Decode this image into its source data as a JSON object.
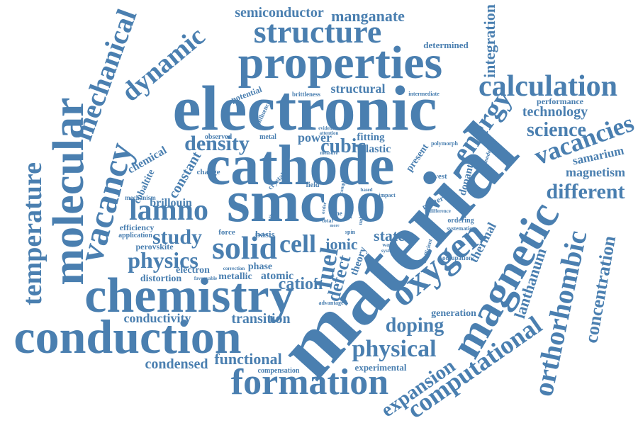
{
  "style": {
    "color": "#4a7fb0",
    "background": "#ffffff"
  },
  "words": [
    "material",
    "smcoo",
    "cathode",
    "electronic",
    "properties",
    "chemistry",
    "conduction",
    "structure",
    "molecular",
    "temperature",
    "vacancy",
    "mechanical",
    "dynamic",
    "calculation",
    "magnetic",
    "oxygen",
    "formation",
    "orthorhombic",
    "computational",
    "solid",
    "lamno",
    "energy",
    "vacancies",
    "science",
    "physical",
    "expansion",
    "concentration",
    "lanthanum",
    "semiconductor",
    "manganate",
    "integration",
    "density",
    "study",
    "physics",
    "cell",
    "cubic",
    "ionic",
    "state",
    "fuel",
    "defect",
    "cation",
    "doping",
    "transition",
    "conductivity",
    "condensed",
    "functional",
    "different",
    "technology",
    "magnetism",
    "samarium",
    "thermal",
    "structural",
    "power",
    "fitting",
    "elastic",
    "determined",
    "constant",
    "chemical",
    "cobaltite",
    "brillouin",
    "perovskite",
    "distortion",
    "electron",
    "metallic",
    "atomic",
    "phase",
    "potential",
    "performance",
    "theory",
    "generation",
    "dopant",
    "experimental",
    "compensation",
    "efficiency",
    "application",
    "change",
    "mechanism",
    "force",
    "basis",
    "observed",
    "metal",
    "field",
    "lowest",
    "matter",
    "ordering",
    "systematic",
    "occupation",
    "coefficient",
    "advantage",
    "brittleness",
    "intermediate",
    "evidence",
    "attention",
    "polymorph",
    "present",
    "favourable",
    "correction",
    "impact",
    "zone",
    "spin",
    "system",
    "wave",
    "influence",
    "modelling",
    "measure",
    "complexity",
    "crystal",
    "based",
    "result",
    "order",
    "unknown",
    "difference",
    "total",
    "more",
    "similar",
    "harder"
  ]
}
